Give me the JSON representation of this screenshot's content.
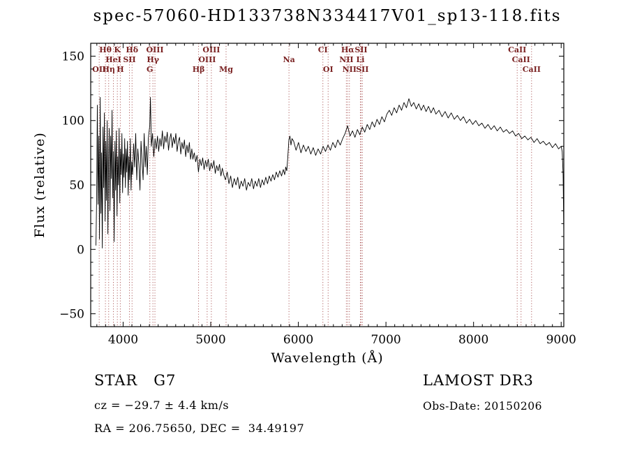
{
  "footer": {
    "object_class": "STAR   G7",
    "survey": "LAMOST DR3",
    "cz": "cz = −29.7 ± 4.4 km/s",
    "obs_date": "Obs-Date: 20150206",
    "coords": "RA = 206.75650, DEC =  34.49197"
  },
  "chart_data": {
    "type": "line",
    "title": "spec-57060-HD133738N334417V01_sp13-118.fits",
    "xlabel": "Wavelength (Å)",
    "ylabel": "Flux (relative)",
    "xlim": [
      3630,
      9030
    ],
    "ylim": [
      -60,
      160
    ],
    "xticks": [
      4000,
      5000,
      6000,
      7000,
      8000,
      9000
    ],
    "yticks": [
      -50,
      0,
      50,
      100,
      150
    ],
    "x_minor_step": 100,
    "y_minor_step": 10,
    "grid": false,
    "legend": "none",
    "colors": {
      "spectrum": "#000000",
      "frame": "#000000",
      "marker_line": "#b06060",
      "marker_label": "#7a2222"
    },
    "spectral_lines": [
      {
        "label": "OII",
        "wavelength": 3727,
        "row": 3
      },
      {
        "label": "Hθ",
        "wavelength": 3798,
        "row": 1
      },
      {
        "label": "Hη",
        "wavelength": 3835,
        "row": 3
      },
      {
        "label": "HeI",
        "wavelength": 3889,
        "row": 2
      },
      {
        "label": "K",
        "wavelength": 3934,
        "row": 1
      },
      {
        "label": "H",
        "wavelength": 3968,
        "row": 3
      },
      {
        "label": "SII",
        "wavelength": 4072,
        "row": 2
      },
      {
        "label": "Hδ",
        "wavelength": 4102,
        "row": 1
      },
      {
        "label": "G",
        "wavelength": 4305,
        "row": 3
      },
      {
        "label": "Hγ",
        "wavelength": 4340,
        "row": 2
      },
      {
        "label": "OIII",
        "wavelength": 4363,
        "row": 1
      },
      {
        "label": "Hβ",
        "wavelength": 4861,
        "row": 3
      },
      {
        "label": "OIII",
        "wavelength": 4959,
        "row": 2
      },
      {
        "label": "OIII",
        "wavelength": 5007,
        "row": 1
      },
      {
        "label": "Mg",
        "wavelength": 5175,
        "row": 3
      },
      {
        "label": "Na",
        "wavelength": 5893,
        "row": 2
      },
      {
        "label": "CI",
        "wavelength": 6280,
        "row": 1
      },
      {
        "label": "OI",
        "wavelength": 6340,
        "row": 3
      },
      {
        "label": "NII",
        "wavelength": 6548,
        "row": 2
      },
      {
        "label": "Hα",
        "wavelength": 6563,
        "row": 1
      },
      {
        "label": "NII",
        "wavelength": 6583,
        "row": 3
      },
      {
        "label": "Li",
        "wavelength": 6708,
        "row": 2
      },
      {
        "label": "SII",
        "wavelength": 6716,
        "row": 1
      },
      {
        "label": "SII",
        "wavelength": 6731,
        "row": 3
      },
      {
        "label": "CaII",
        "wavelength": 8498,
        "row": 1
      },
      {
        "label": "CaII",
        "wavelength": 8542,
        "row": 2
      },
      {
        "label": "CaII",
        "wavelength": 8662,
        "row": 3
      }
    ],
    "series": [
      {
        "name": "spectrum",
        "points": [
          [
            3690,
            3
          ],
          [
            3698,
            40
          ],
          [
            3706,
            112
          ],
          [
            3714,
            35
          ],
          [
            3722,
            88
          ],
          [
            3730,
            8
          ],
          [
            3738,
            118
          ],
          [
            3746,
            28
          ],
          [
            3754,
            75
          ],
          [
            3762,
            1
          ],
          [
            3770,
            95
          ],
          [
            3778,
            48
          ],
          [
            3786,
            106
          ],
          [
            3794,
            22
          ],
          [
            3802,
            84
          ],
          [
            3810,
            38
          ],
          [
            3818,
            100
          ],
          [
            3826,
            12
          ],
          [
            3834,
            68
          ],
          [
            3842,
            94
          ],
          [
            3850,
            30
          ],
          [
            3858,
            88
          ],
          [
            3866,
            55
          ],
          [
            3874,
            108
          ],
          [
            3882,
            40
          ],
          [
            3890,
            76
          ],
          [
            3898,
            6
          ],
          [
            3906,
            84
          ],
          [
            3914,
            46
          ],
          [
            3922,
            92
          ],
          [
            3930,
            26
          ],
          [
            3938,
            72
          ],
          [
            3946,
            50
          ],
          [
            3954,
            94
          ],
          [
            3962,
            36
          ],
          [
            3970,
            78
          ],
          [
            3978,
            58
          ],
          [
            3986,
            90
          ],
          [
            3994,
            44
          ],
          [
            4002,
            74
          ],
          [
            4010,
            56
          ],
          [
            4018,
            86
          ],
          [
            4026,
            48
          ],
          [
            4034,
            78
          ],
          [
            4042,
            60
          ],
          [
            4050,
            84
          ],
          [
            4058,
            42
          ],
          [
            4066,
            72
          ],
          [
            4074,
            54
          ],
          [
            4082,
            86
          ],
          [
            4090,
            46
          ],
          [
            4098,
            68
          ],
          [
            4108,
            58
          ],
          [
            4120,
            82
          ],
          [
            4132,
            64
          ],
          [
            4144,
            90
          ],
          [
            4156,
            54
          ],
          [
            4168,
            78
          ],
          [
            4180,
            66
          ],
          [
            4192,
            46
          ],
          [
            4204,
            84
          ],
          [
            4216,
            68
          ],
          [
            4228,
            54
          ],
          [
            4240,
            90
          ],
          [
            4252,
            64
          ],
          [
            4264,
            80
          ],
          [
            4276,
            58
          ],
          [
            4288,
            86
          ],
          [
            4304,
            96
          ],
          [
            4312,
            118
          ],
          [
            4322,
            80
          ],
          [
            4336,
            90
          ],
          [
            4350,
            72
          ],
          [
            4364,
            86
          ],
          [
            4378,
            78
          ],
          [
            4392,
            88
          ],
          [
            4406,
            76
          ],
          [
            4420,
            86
          ],
          [
            4434,
            80
          ],
          [
            4448,
            92
          ],
          [
            4462,
            78
          ],
          [
            4476,
            88
          ],
          [
            4490,
            83
          ],
          [
            4504,
            91
          ],
          [
            4518,
            77
          ],
          [
            4532,
            86
          ],
          [
            4546,
            90
          ],
          [
            4560,
            79
          ],
          [
            4574,
            87
          ],
          [
            4588,
            82
          ],
          [
            4602,
            90
          ],
          [
            4616,
            76
          ],
          [
            4630,
            84
          ],
          [
            4644,
            87
          ],
          [
            4658,
            74
          ],
          [
            4672,
            83
          ],
          [
            4686,
            78
          ],
          [
            4700,
            85
          ],
          [
            4714,
            72
          ],
          [
            4728,
            81
          ],
          [
            4742,
            75
          ],
          [
            4756,
            83
          ],
          [
            4770,
            70
          ],
          [
            4784,
            78
          ],
          [
            4796,
            70
          ],
          [
            4812,
            75
          ],
          [
            4828,
            68
          ],
          [
            4844,
            73
          ],
          [
            4860,
            60
          ],
          [
            4876,
            70
          ],
          [
            4892,
            65
          ],
          [
            4908,
            71
          ],
          [
            4924,
            62
          ],
          [
            4940,
            69
          ],
          [
            4956,
            64
          ],
          [
            4972,
            70
          ],
          [
            4988,
            61
          ],
          [
            5004,
            67
          ],
          [
            5020,
            63
          ],
          [
            5036,
            69
          ],
          [
            5052,
            59
          ],
          [
            5068,
            65
          ],
          [
            5084,
            61
          ],
          [
            5100,
            66
          ],
          [
            5116,
            57
          ],
          [
            5132,
            63
          ],
          [
            5148,
            58
          ],
          [
            5168,
            54
          ],
          [
            5188,
            60
          ],
          [
            5208,
            51
          ],
          [
            5228,
            57
          ],
          [
            5248,
            48
          ],
          [
            5268,
            55
          ],
          [
            5288,
            50
          ],
          [
            5308,
            56
          ],
          [
            5328,
            47
          ],
          [
            5348,
            53
          ],
          [
            5368,
            49
          ],
          [
            5388,
            55
          ],
          [
            5408,
            46
          ],
          [
            5428,
            52
          ],
          [
            5448,
            49
          ],
          [
            5468,
            55
          ],
          [
            5488,
            47
          ],
          [
            5508,
            53
          ],
          [
            5528,
            49
          ],
          [
            5548,
            55
          ],
          [
            5568,
            48
          ],
          [
            5588,
            54
          ],
          [
            5608,
            50
          ],
          [
            5628,
            56
          ],
          [
            5648,
            51
          ],
          [
            5668,
            57
          ],
          [
            5688,
            53
          ],
          [
            5708,
            58
          ],
          [
            5728,
            54
          ],
          [
            5748,
            60
          ],
          [
            5768,
            56
          ],
          [
            5788,
            61
          ],
          [
            5808,
            57
          ],
          [
            5828,
            62
          ],
          [
            5844,
            58
          ],
          [
            5856,
            64
          ],
          [
            5868,
            61
          ],
          [
            5880,
            72
          ],
          [
            5892,
            85
          ],
          [
            5904,
            88
          ],
          [
            5916,
            81
          ],
          [
            5928,
            86
          ],
          [
            5946,
            84
          ],
          [
            5974,
            77
          ],
          [
            6002,
            83
          ],
          [
            6030,
            75
          ],
          [
            6058,
            81
          ],
          [
            6086,
            76
          ],
          [
            6114,
            80
          ],
          [
            6142,
            74
          ],
          [
            6170,
            79
          ],
          [
            6198,
            73
          ],
          [
            6226,
            78
          ],
          [
            6254,
            74
          ],
          [
            6282,
            80
          ],
          [
            6310,
            76
          ],
          [
            6338,
            81
          ],
          [
            6366,
            77
          ],
          [
            6394,
            83
          ],
          [
            6422,
            79
          ],
          [
            6450,
            85
          ],
          [
            6478,
            81
          ],
          [
            6506,
            86
          ],
          [
            6534,
            90
          ],
          [
            6562,
            96
          ],
          [
            6590,
            88
          ],
          [
            6618,
            92
          ],
          [
            6646,
            87
          ],
          [
            6674,
            93
          ],
          [
            6702,
            89
          ],
          [
            6730,
            95
          ],
          [
            6758,
            91
          ],
          [
            6786,
            97
          ],
          [
            6814,
            93
          ],
          [
            6842,
            99
          ],
          [
            6870,
            95
          ],
          [
            6898,
            101
          ],
          [
            6926,
            97
          ],
          [
            6954,
            103
          ],
          [
            6982,
            99
          ],
          [
            7010,
            105
          ],
          [
            7038,
            108
          ],
          [
            7066,
            104
          ],
          [
            7094,
            110
          ],
          [
            7122,
            106
          ],
          [
            7150,
            112
          ],
          [
            7178,
            108
          ],
          [
            7206,
            114
          ],
          [
            7234,
            110
          ],
          [
            7262,
            117
          ],
          [
            7290,
            111
          ],
          [
            7318,
            114
          ],
          [
            7346,
            109
          ],
          [
            7374,
            113
          ],
          [
            7402,
            108
          ],
          [
            7430,
            112
          ],
          [
            7458,
            107
          ],
          [
            7486,
            111
          ],
          [
            7514,
            106
          ],
          [
            7542,
            110
          ],
          [
            7570,
            105
          ],
          [
            7605,
            108
          ],
          [
            7640,
            103
          ],
          [
            7675,
            107
          ],
          [
            7710,
            102
          ],
          [
            7745,
            106
          ],
          [
            7780,
            101
          ],
          [
            7815,
            104
          ],
          [
            7850,
            100
          ],
          [
            7885,
            103
          ],
          [
            7920,
            98
          ],
          [
            7955,
            101
          ],
          [
            7990,
            97
          ],
          [
            8025,
            100
          ],
          [
            8060,
            96
          ],
          [
            8095,
            98
          ],
          [
            8130,
            94
          ],
          [
            8165,
            97
          ],
          [
            8200,
            93
          ],
          [
            8235,
            96
          ],
          [
            8270,
            92
          ],
          [
            8305,
            95
          ],
          [
            8340,
            91
          ],
          [
            8375,
            93
          ],
          [
            8410,
            90
          ],
          [
            8445,
            92
          ],
          [
            8480,
            88
          ],
          [
            8515,
            90
          ],
          [
            8550,
            86
          ],
          [
            8585,
            88
          ],
          [
            8620,
            85
          ],
          [
            8655,
            87
          ],
          [
            8690,
            83
          ],
          [
            8725,
            86
          ],
          [
            8760,
            82
          ],
          [
            8795,
            84
          ],
          [
            8830,
            81
          ],
          [
            8865,
            83
          ],
          [
            8900,
            79
          ],
          [
            8935,
            82
          ],
          [
            8970,
            78
          ],
          [
            9000,
            80
          ],
          [
            9012,
            76
          ],
          [
            9022,
            58
          ],
          [
            9030,
            12
          ]
        ]
      }
    ]
  }
}
